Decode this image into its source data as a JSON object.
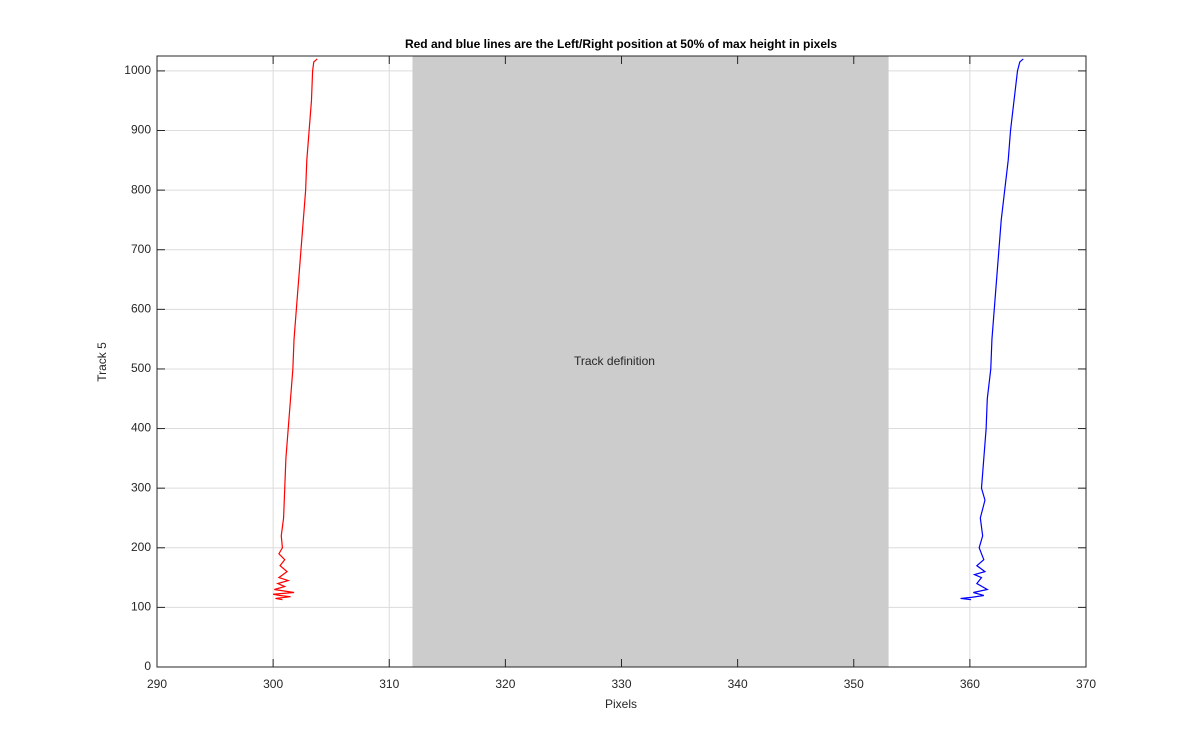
{
  "chart_data": {
    "type": "line",
    "title": "Red and blue lines are the Left/Right position at 50% of max height in pixels",
    "x_label": "Pixels",
    "y_label": "Track 5",
    "annotation": "Track definition",
    "region": {
      "x": [
        312,
        353
      ],
      "color": "#cccccc"
    },
    "xlim": [
      290,
      370
    ],
    "ylim": [
      0,
      1025
    ],
    "xticks": [
      290,
      300,
      310,
      320,
      330,
      340,
      350,
      360,
      370
    ],
    "yticks": [
      0,
      100,
      200,
      300,
      400,
      500,
      600,
      700,
      800,
      900,
      1000
    ],
    "grid": true,
    "series": [
      {
        "color": "#ff0000",
        "y": [
          1020,
          1015,
          1000,
          950,
          900,
          850,
          800,
          750,
          700,
          650,
          600,
          550,
          500,
          450,
          400,
          350,
          300,
          250,
          220,
          200,
          190,
          180,
          170,
          160,
          150,
          145,
          140,
          135,
          130,
          125,
          122,
          120,
          118,
          115,
          113
        ],
        "x": [
          303.8,
          303.5,
          303.4,
          303.3,
          303.1,
          302.9,
          302.8,
          302.6,
          302.4,
          302.2,
          302.0,
          301.8,
          301.7,
          301.5,
          301.3,
          301.1,
          301.0,
          300.9,
          300.7,
          300.8,
          300.5,
          301.0,
          300.6,
          301.2,
          300.5,
          301.3,
          300.4,
          301.0,
          300.1,
          301.8,
          300.0,
          300.6,
          301.5,
          300.2,
          300.8
        ]
      },
      {
        "color": "#0000ff",
        "y": [
          1020,
          1015,
          1000,
          950,
          900,
          850,
          800,
          750,
          700,
          650,
          600,
          550,
          500,
          450,
          400,
          350,
          300,
          280,
          250,
          220,
          200,
          180,
          170,
          160,
          155,
          150,
          140,
          130,
          125,
          120,
          117,
          115,
          113
        ],
        "x": [
          364.6,
          364.3,
          364.1,
          363.8,
          363.5,
          363.3,
          363.0,
          362.7,
          362.5,
          362.3,
          362.1,
          361.9,
          361.8,
          361.5,
          361.4,
          361.2,
          361.0,
          361.3,
          360.9,
          361.1,
          360.8,
          361.2,
          360.6,
          361.3,
          360.4,
          361.0,
          360.6,
          361.5,
          360.3,
          361.2,
          360.2,
          359.2,
          360.1
        ]
      }
    ]
  }
}
